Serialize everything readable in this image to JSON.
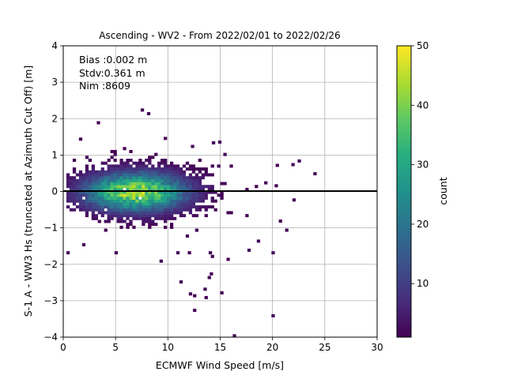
{
  "chart_data": {
    "type": "heatmap",
    "title": "Ascending - WV2 - From 2022/02/01 to 2022/02/26",
    "xlabel": "ECMWF Wind Speed [m/s]",
    "ylabel": "S-1 A - WW3 Hs (truncated at Azimuth Cut Off) [m]",
    "xlim": [
      0,
      30
    ],
    "ylim": [
      -4,
      4
    ],
    "xticks": [
      "0",
      "5",
      "10",
      "15",
      "20",
      "25",
      "30"
    ],
    "yticks": [
      "4",
      "3",
      "2",
      "1",
      "0",
      "−1",
      "−2",
      "−3",
      "−4"
    ],
    "grid": true,
    "colormap": "viridis",
    "colorbar": {
      "label": "count",
      "range": [
        1,
        50
      ],
      "ticks": [
        "50",
        "40",
        "30",
        "20",
        "10"
      ]
    },
    "stats": {
      "bias": "Bias :0.002 m",
      "stdv": "Stdv:0.361 m",
      "nim": "Nim :8609"
    },
    "zero_line_y": 0,
    "core_distribution": {
      "center_x": 6.8,
      "center_y": -0.05,
      "peak_count": 45
    },
    "outliers": [
      [
        7.4,
        2.2
      ],
      [
        8.0,
        2.1
      ],
      [
        3.2,
        1.85
      ],
      [
        1.5,
        1.4
      ],
      [
        9.6,
        1.42
      ],
      [
        12.2,
        1.2
      ],
      [
        14.2,
        1.3
      ],
      [
        14.8,
        1.32
      ],
      [
        20.3,
        0.68
      ],
      [
        21.8,
        0.7
      ],
      [
        22.4,
        0.8
      ],
      [
        23.9,
        0.45
      ],
      [
        19.2,
        0.2
      ],
      [
        20.2,
        0.12
      ],
      [
        21.9,
        -0.27
      ],
      [
        20.6,
        -0.85
      ],
      [
        21.2,
        -1.1
      ],
      [
        18.5,
        -1.4
      ],
      [
        17.6,
        -1.65
      ],
      [
        19.9,
        -1.72
      ],
      [
        0.3,
        -1.72
      ],
      [
        1.8,
        -1.5
      ],
      [
        4.9,
        -1.72
      ],
      [
        10.8,
        -1.72
      ],
      [
        11.9,
        -1.72
      ],
      [
        13.9,
        -1.72
      ],
      [
        14.1,
        -1.82
      ],
      [
        15.6,
        -1.9
      ],
      [
        9.2,
        -1.95
      ],
      [
        14.0,
        -2.3
      ],
      [
        13.8,
        -2.4
      ],
      [
        11.1,
        -2.52
      ],
      [
        13.4,
        -2.72
      ],
      [
        13.5,
        -2.95
      ],
      [
        12.0,
        -2.85
      ],
      [
        12.4,
        -2.9
      ],
      [
        15.0,
        -2.82
      ],
      [
        12.4,
        -3.3
      ],
      [
        19.9,
        -3.45
      ],
      [
        16.2,
        -4.0
      ]
    ]
  }
}
